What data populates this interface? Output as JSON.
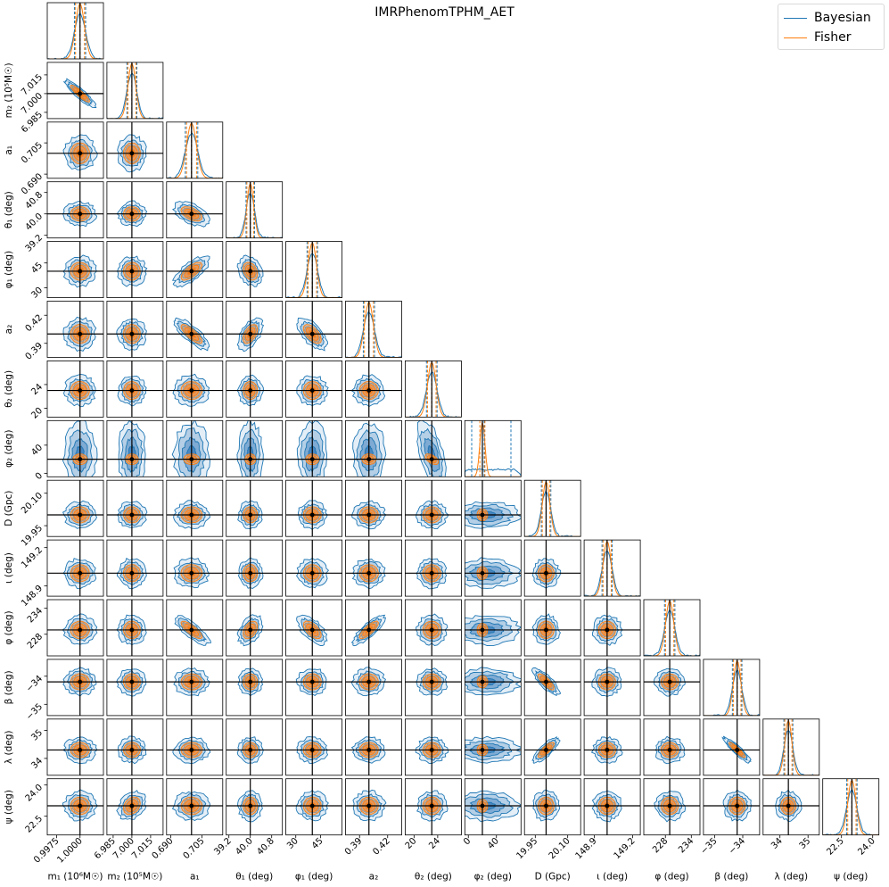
{
  "chart_data": {
    "type": "corner",
    "title": "IMRPhenomTPHM_AET",
    "legend": [
      {
        "name": "Bayesian",
        "color": "#1f77b4"
      },
      {
        "name": "Fisher",
        "color": "#ff7f0e"
      }
    ],
    "truth_color": "#000000",
    "parameters": [
      {
        "key": "m1",
        "label": "m₁ (10⁶M☉)",
        "center": 1.0,
        "sigma": 0.0006,
        "range": [
          0.9965,
          1.0025
        ],
        "ticks": [
          0.9975,
          1.0
        ],
        "tick_labels": [
          "0.9975",
          "1.0000"
        ],
        "fisher_scale": 0.8,
        "bayes_shift": 0.0
      },
      {
        "key": "m2",
        "label": "m₂ (10⁵M☉)",
        "center": 7.0,
        "sigma": 0.004,
        "range": [
          6.98,
          7.025
        ],
        "ticks": [
          6.985,
          7.0,
          7.015
        ],
        "tick_labels": [
          "6.985",
          "7.000",
          "7.015"
        ],
        "fisher_scale": 0.8,
        "bayes_shift": 0.0
      },
      {
        "key": "a1",
        "label": "a₁",
        "center": 0.7,
        "sigma": 0.003,
        "range": [
          0.688,
          0.715
        ],
        "ticks": [
          0.69,
          0.705
        ],
        "tick_labels": [
          "0.690",
          "0.705"
        ],
        "fisher_scale": 0.8,
        "bayes_shift": 0.0
      },
      {
        "key": "theta1",
        "label": "θ₁ (deg)",
        "center": 40.0,
        "sigma": 0.16,
        "range": [
          39.1,
          41.2
        ],
        "ticks": [
          39.2,
          40.0,
          40.8
        ],
        "tick_labels": [
          "39.2",
          "40.0",
          "40.8"
        ],
        "fisher_scale": 0.8,
        "bayes_shift": 0.0
      },
      {
        "key": "phi1",
        "label": "φ₁ (deg)",
        "center": 40.0,
        "sigma": 3.2,
        "range": [
          24,
          58
        ],
        "ticks": [
          30,
          45
        ],
        "tick_labels": [
          "30",
          "45"
        ],
        "fisher_scale": 0.8,
        "bayes_shift": 0.0
      },
      {
        "key": "a2",
        "label": "a₂",
        "center": 0.4,
        "sigma": 0.006,
        "range": [
          0.375,
          0.435
        ],
        "ticks": [
          0.39,
          0.42
        ],
        "tick_labels": [
          "0.39",
          "0.42"
        ],
        "fisher_scale": 0.8,
        "bayes_shift": 0.0
      },
      {
        "key": "theta2",
        "label": "θ₂ (deg)",
        "center": 23.0,
        "sigma": 0.9,
        "range": [
          18.5,
          28
        ],
        "ticks": [
          20,
          24
        ],
        "tick_labels": [
          "20",
          "24"
        ],
        "fisher_scale": 0.8,
        "bayes_shift": 0.0
      },
      {
        "key": "phi2",
        "label": "φ₂ (deg)",
        "center": 20.0,
        "sigma": 6.0,
        "range": [
          -5,
          75
        ],
        "ticks": [
          0,
          40
        ],
        "tick_labels": [
          "0",
          "40"
        ],
        "fisher_scale": 0.6,
        "bayes_shift": 2.2
      },
      {
        "key": "D",
        "label": "D (Gpc)",
        "center": 20.0,
        "sigma": 0.022,
        "range": [
          19.9,
          20.16
        ],
        "ticks": [
          19.95,
          20.1
        ],
        "tick_labels": [
          "19.95",
          "20.10"
        ],
        "fisher_scale": 0.8,
        "bayes_shift": 0.0
      },
      {
        "key": "iota",
        "label": "ι (deg)",
        "center": 149.0,
        "sigma": 0.04,
        "range": [
          148.82,
          149.26
        ],
        "ticks": [
          148.9,
          149.2
        ],
        "tick_labels": [
          "148.9",
          "149.2"
        ],
        "fisher_scale": 0.8,
        "bayes_shift": 0.0
      },
      {
        "key": "phi",
        "label": "φ (deg)",
        "center": 229.0,
        "sigma": 1.2,
        "range": [
          223,
          236
        ],
        "ticks": [
          228,
          234
        ],
        "tick_labels": [
          "228",
          "234"
        ],
        "fisher_scale": 0.8,
        "bayes_shift": 0.0
      },
      {
        "key": "beta",
        "label": "β (deg)",
        "center": -34.2,
        "sigma": 0.17,
        "range": [
          -35.4,
          -33.4
        ],
        "ticks": [
          -35,
          -34
        ],
        "tick_labels": [
          "−35",
          "−34"
        ],
        "fisher_scale": 0.8,
        "bayes_shift": 0.0
      },
      {
        "key": "lambda",
        "label": "λ (deg)",
        "center": 34.3,
        "sigma": 0.16,
        "range": [
          33.4,
          35.4
        ],
        "ticks": [
          34,
          35
        ],
        "tick_labels": [
          "34",
          "35"
        ],
        "fisher_scale": 0.8,
        "bayes_shift": 0.0
      },
      {
        "key": "psi",
        "label": "ψ (deg)",
        "center": 23.0,
        "sigma": 0.25,
        "range": [
          21.6,
          24.3
        ],
        "ticks": [
          22.5,
          24.0
        ],
        "tick_labels": [
          "22.5",
          "24.0"
        ],
        "fisher_scale": 0.8,
        "bayes_shift": 0.0
      }
    ],
    "correlations": [
      {
        "i": 0,
        "j": 1,
        "rho": -0.9
      },
      {
        "i": 2,
        "j": 3,
        "rho": -0.5
      },
      {
        "i": 2,
        "j": 4,
        "rho": 0.7
      },
      {
        "i": 3,
        "j": 4,
        "rho": -0.3
      },
      {
        "i": 2,
        "j": 5,
        "rho": -0.8
      },
      {
        "i": 3,
        "j": 5,
        "rho": 0.5
      },
      {
        "i": 4,
        "j": 5,
        "rho": -0.6
      },
      {
        "i": 6,
        "j": 7,
        "rho": -0.55
      },
      {
        "i": 2,
        "j": 10,
        "rho": -0.8
      },
      {
        "i": 3,
        "j": 10,
        "rho": 0.4
      },
      {
        "i": 4,
        "j": 10,
        "rho": -0.6
      },
      {
        "i": 5,
        "j": 10,
        "rho": 0.8
      },
      {
        "i": 8,
        "j": 11,
        "rho": -0.8
      },
      {
        "i": 8,
        "j": 12,
        "rho": 0.8
      },
      {
        "i": 11,
        "j": 12,
        "rho": -0.9
      },
      {
        "i": 1,
        "j": 13,
        "rho": 0.3
      }
    ],
    "contour_levels_sigma": [
      0.7,
      1.4,
      2.1,
      2.8
    ]
  }
}
